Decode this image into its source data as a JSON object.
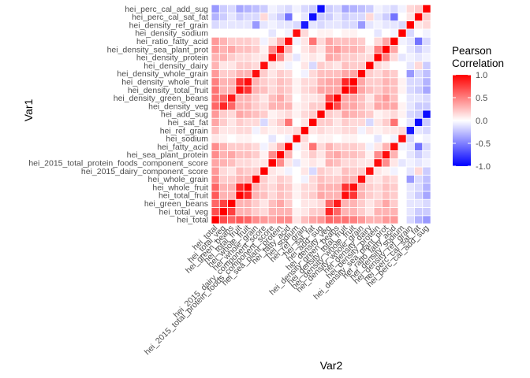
{
  "chart_data": {
    "type": "heatmap",
    "title": "",
    "xlabel": "Var2",
    "ylabel": "Var1",
    "variables": [
      "hei_total",
      "hei_total_veg",
      "hei_green_beans",
      "hei_total_fruit",
      "hei_whole_fruit",
      "hei_whole_grain",
      "hei_2015_dairy_component_score",
      "hei_2015_total_protein_foods_component_score",
      "hei_sea_plant_protein",
      "hei_fatty_acid",
      "hei_sodium",
      "hei_ref_grain",
      "hei_sat_fat",
      "hei_add_sug",
      "hei_density_veg",
      "hei_density_green_beans",
      "hei_density_total_fruit",
      "hei_density_whole_fruit",
      "hei_density_whole_grain",
      "hei_density_dairy",
      "hei_density_protein",
      "hei_density_sea_plant_prot",
      "hei_ratio_fatty_acid",
      "hei_density_sodium",
      "hei_density_ref_grain",
      "hei_perc_cal_sat_fat",
      "hei_perc_cal_add_sug"
    ],
    "correlation_matrix": [
      [
        1.0,
        0.7,
        0.6,
        0.65,
        0.6,
        0.45,
        0.4,
        0.35,
        0.45,
        0.45,
        0.1,
        0.25,
        0.35,
        0.4,
        0.6,
        0.55,
        0.55,
        0.5,
        0.4,
        0.3,
        0.3,
        0.4,
        0.4,
        0.0,
        -0.15,
        -0.3,
        -0.4
      ],
      [
        0.7,
        1.0,
        0.75,
        0.3,
        0.3,
        0.2,
        0.15,
        0.3,
        0.3,
        0.3,
        0.05,
        0.1,
        0.2,
        0.2,
        0.85,
        0.6,
        0.3,
        0.3,
        0.2,
        0.1,
        0.3,
        0.3,
        0.3,
        0.0,
        -0.1,
        -0.2,
        -0.2
      ],
      [
        0.6,
        0.75,
        1.0,
        0.3,
        0.3,
        0.2,
        0.1,
        0.25,
        0.35,
        0.2,
        0.0,
        0.1,
        0.1,
        0.15,
        0.6,
        0.9,
        0.3,
        0.3,
        0.2,
        0.1,
        0.2,
        0.35,
        0.2,
        0.0,
        -0.1,
        -0.1,
        -0.15
      ],
      [
        0.65,
        0.3,
        0.3,
        1.0,
        0.85,
        0.3,
        0.25,
        0.15,
        0.25,
        0.2,
        0.05,
        0.15,
        0.2,
        0.35,
        0.3,
        0.3,
        0.95,
        0.8,
        0.3,
        0.2,
        0.15,
        0.25,
        0.2,
        0.0,
        -0.1,
        -0.2,
        -0.35
      ],
      [
        0.6,
        0.3,
        0.3,
        0.85,
        1.0,
        0.3,
        0.2,
        0.15,
        0.25,
        0.2,
        0.05,
        0.15,
        0.15,
        0.3,
        0.3,
        0.3,
        0.8,
        0.95,
        0.3,
        0.2,
        0.15,
        0.25,
        0.2,
        0.0,
        -0.1,
        -0.15,
        -0.3
      ],
      [
        0.45,
        0.2,
        0.2,
        0.3,
        0.3,
        1.0,
        0.2,
        0.1,
        0.2,
        0.15,
        0.0,
        -0.05,
        0.15,
        0.25,
        0.2,
        0.2,
        0.3,
        0.3,
        0.95,
        0.15,
        0.1,
        0.2,
        0.15,
        0.0,
        -0.4,
        -0.15,
        -0.25
      ],
      [
        0.4,
        0.15,
        0.1,
        0.25,
        0.2,
        0.2,
        1.0,
        0.1,
        0.05,
        -0.05,
        0.0,
        0.1,
        -0.15,
        0.2,
        0.15,
        0.1,
        0.25,
        0.2,
        0.2,
        0.95,
        0.1,
        0.05,
        -0.05,
        0.0,
        -0.1,
        0.15,
        -0.2
      ],
      [
        0.35,
        0.3,
        0.25,
        0.15,
        0.15,
        0.1,
        0.1,
        1.0,
        0.45,
        0.1,
        -0.1,
        0.05,
        0.1,
        0.05,
        0.3,
        0.25,
        0.15,
        0.15,
        0.1,
        0.1,
        0.95,
        0.45,
        0.1,
        -0.1,
        -0.05,
        -0.1,
        -0.05
      ],
      [
        0.45,
        0.3,
        0.35,
        0.25,
        0.25,
        0.2,
        0.05,
        0.45,
        1.0,
        0.3,
        0.0,
        0.1,
        0.2,
        0.1,
        0.3,
        0.35,
        0.25,
        0.25,
        0.2,
        0.05,
        0.45,
        0.95,
        0.3,
        0.0,
        -0.1,
        -0.2,
        -0.1
      ],
      [
        0.45,
        0.3,
        0.2,
        0.2,
        0.2,
        0.15,
        -0.05,
        0.1,
        0.3,
        1.0,
        -0.05,
        0.1,
        0.55,
        0.15,
        0.3,
        0.2,
        0.2,
        0.2,
        0.15,
        -0.05,
        0.1,
        0.3,
        0.95,
        -0.05,
        -0.1,
        -0.55,
        -0.15
      ],
      [
        0.1,
        0.05,
        0.0,
        0.05,
        0.05,
        0.0,
        0.0,
        -0.1,
        0.0,
        -0.05,
        1.0,
        0.15,
        0.0,
        0.05,
        0.05,
        0.0,
        0.05,
        0.05,
        0.0,
        0.0,
        -0.1,
        0.0,
        -0.05,
        0.95,
        -0.15,
        0.0,
        -0.05
      ],
      [
        0.25,
        0.1,
        0.1,
        0.15,
        0.15,
        -0.05,
        0.1,
        0.05,
        0.1,
        0.1,
        0.15,
        1.0,
        0.1,
        0.15,
        0.1,
        0.1,
        0.15,
        0.15,
        -0.05,
        0.1,
        0.05,
        0.1,
        0.1,
        0.15,
        -0.9,
        -0.1,
        -0.15
      ],
      [
        0.35,
        0.2,
        0.1,
        0.2,
        0.15,
        0.15,
        -0.15,
        0.1,
        0.2,
        0.55,
        0.0,
        0.1,
        1.0,
        0.2,
        0.2,
        0.1,
        0.2,
        0.15,
        0.15,
        -0.15,
        0.1,
        0.2,
        0.55,
        0.0,
        -0.1,
        -0.95,
        -0.2
      ],
      [
        0.4,
        0.2,
        0.15,
        0.35,
        0.3,
        0.25,
        0.2,
        0.05,
        0.1,
        0.15,
        0.05,
        0.15,
        0.2,
        1.0,
        0.2,
        0.15,
        0.35,
        0.3,
        0.25,
        0.2,
        0.05,
        0.1,
        0.15,
        0.05,
        -0.15,
        -0.2,
        -0.95
      ],
      [
        0.6,
        0.85,
        0.6,
        0.3,
        0.3,
        0.2,
        0.15,
        0.3,
        0.3,
        0.3,
        0.05,
        0.1,
        0.2,
        0.2,
        1.0,
        0.7,
        0.35,
        0.35,
        0.25,
        0.15,
        0.35,
        0.35,
        0.35,
        0.05,
        -0.1,
        -0.2,
        -0.2
      ],
      [
        0.55,
        0.6,
        0.9,
        0.3,
        0.3,
        0.2,
        0.1,
        0.25,
        0.35,
        0.2,
        0.0,
        0.1,
        0.1,
        0.15,
        0.7,
        1.0,
        0.35,
        0.35,
        0.25,
        0.1,
        0.3,
        0.4,
        0.25,
        0.0,
        -0.1,
        -0.1,
        -0.15
      ],
      [
        0.55,
        0.3,
        0.3,
        0.95,
        0.8,
        0.3,
        0.25,
        0.15,
        0.25,
        0.2,
        0.05,
        0.15,
        0.2,
        0.35,
        0.35,
        0.35,
        1.0,
        0.85,
        0.35,
        0.25,
        0.2,
        0.3,
        0.25,
        0.05,
        -0.15,
        -0.2,
        -0.35
      ],
      [
        0.5,
        0.3,
        0.3,
        0.8,
        0.95,
        0.3,
        0.2,
        0.15,
        0.25,
        0.2,
        0.05,
        0.15,
        0.15,
        0.3,
        0.35,
        0.35,
        0.85,
        1.0,
        0.35,
        0.2,
        0.2,
        0.3,
        0.25,
        0.05,
        -0.15,
        -0.15,
        -0.3
      ],
      [
        0.4,
        0.2,
        0.2,
        0.3,
        0.3,
        0.95,
        0.2,
        0.1,
        0.2,
        0.15,
        0.0,
        -0.05,
        0.15,
        0.25,
        0.25,
        0.25,
        0.35,
        0.35,
        1.0,
        0.2,
        0.15,
        0.25,
        0.2,
        0.0,
        -0.4,
        -0.15,
        -0.25
      ],
      [
        0.3,
        0.1,
        0.1,
        0.2,
        0.2,
        0.15,
        0.95,
        0.1,
        0.05,
        -0.05,
        0.0,
        0.1,
        -0.15,
        0.2,
        0.15,
        0.1,
        0.25,
        0.2,
        0.2,
        1.0,
        0.15,
        0.1,
        0.0,
        0.0,
        -0.1,
        0.15,
        -0.2
      ],
      [
        0.3,
        0.3,
        0.2,
        0.15,
        0.15,
        0.1,
        0.1,
        0.95,
        0.45,
        0.1,
        -0.1,
        0.05,
        0.1,
        0.05,
        0.35,
        0.3,
        0.2,
        0.2,
        0.15,
        0.15,
        1.0,
        0.5,
        0.15,
        -0.1,
        -0.05,
        -0.1,
        -0.05
      ],
      [
        0.4,
        0.3,
        0.35,
        0.25,
        0.25,
        0.2,
        0.05,
        0.45,
        0.95,
        0.3,
        0.0,
        0.1,
        0.2,
        0.1,
        0.35,
        0.4,
        0.3,
        0.3,
        0.25,
        0.1,
        0.5,
        1.0,
        0.35,
        0.0,
        -0.1,
        -0.2,
        -0.1
      ],
      [
        0.4,
        0.3,
        0.2,
        0.2,
        0.2,
        0.15,
        -0.05,
        0.1,
        0.3,
        0.95,
        -0.05,
        0.1,
        0.55,
        0.15,
        0.35,
        0.25,
        0.25,
        0.25,
        0.2,
        0.0,
        0.15,
        0.35,
        1.0,
        -0.05,
        -0.1,
        -0.55,
        -0.15
      ],
      [
        0.0,
        0.0,
        0.0,
        0.0,
        0.0,
        0.0,
        0.0,
        -0.1,
        0.0,
        -0.05,
        0.95,
        0.15,
        0.0,
        0.05,
        0.05,
        0.0,
        0.05,
        0.05,
        0.0,
        0.0,
        -0.1,
        0.0,
        -0.05,
        1.0,
        -0.15,
        0.0,
        -0.05
      ],
      [
        -0.15,
        -0.1,
        -0.1,
        -0.1,
        -0.1,
        -0.4,
        -0.1,
        -0.05,
        -0.1,
        -0.1,
        -0.15,
        -0.9,
        -0.1,
        -0.15,
        -0.1,
        -0.1,
        -0.15,
        -0.15,
        -0.4,
        -0.1,
        -0.05,
        -0.1,
        -0.1,
        -0.15,
        1.0,
        0.1,
        0.15
      ],
      [
        -0.3,
        -0.2,
        -0.1,
        -0.2,
        -0.15,
        -0.15,
        0.15,
        -0.1,
        -0.2,
        -0.55,
        0.0,
        -0.1,
        -0.95,
        -0.2,
        -0.2,
        -0.1,
        -0.2,
        -0.15,
        -0.15,
        0.15,
        -0.1,
        -0.2,
        -0.55,
        0.0,
        0.1,
        1.0,
        0.2
      ],
      [
        -0.4,
        -0.2,
        -0.15,
        -0.35,
        -0.3,
        -0.25,
        -0.2,
        -0.05,
        -0.1,
        -0.15,
        -0.05,
        -0.15,
        -0.2,
        -0.95,
        -0.2,
        -0.15,
        -0.35,
        -0.3,
        -0.25,
        -0.2,
        -0.05,
        -0.1,
        -0.15,
        -0.05,
        0.15,
        0.2,
        1.0
      ]
    ],
    "color_scale": {
      "low": "#0000FF",
      "mid": "#FFFFFF",
      "high": "#FF0000",
      "limits": [
        -1,
        1
      ]
    },
    "legend": {
      "title_line1": "Pearson",
      "title_line2": "Correlation",
      "ticks": [
        1.0,
        0.5,
        0.0,
        -0.5,
        -1.0
      ],
      "tick_labels": [
        "1.0",
        "0.5",
        "0.0",
        "-0.5",
        "-1.0"
      ],
      "placement": "right"
    },
    "grid": false
  }
}
